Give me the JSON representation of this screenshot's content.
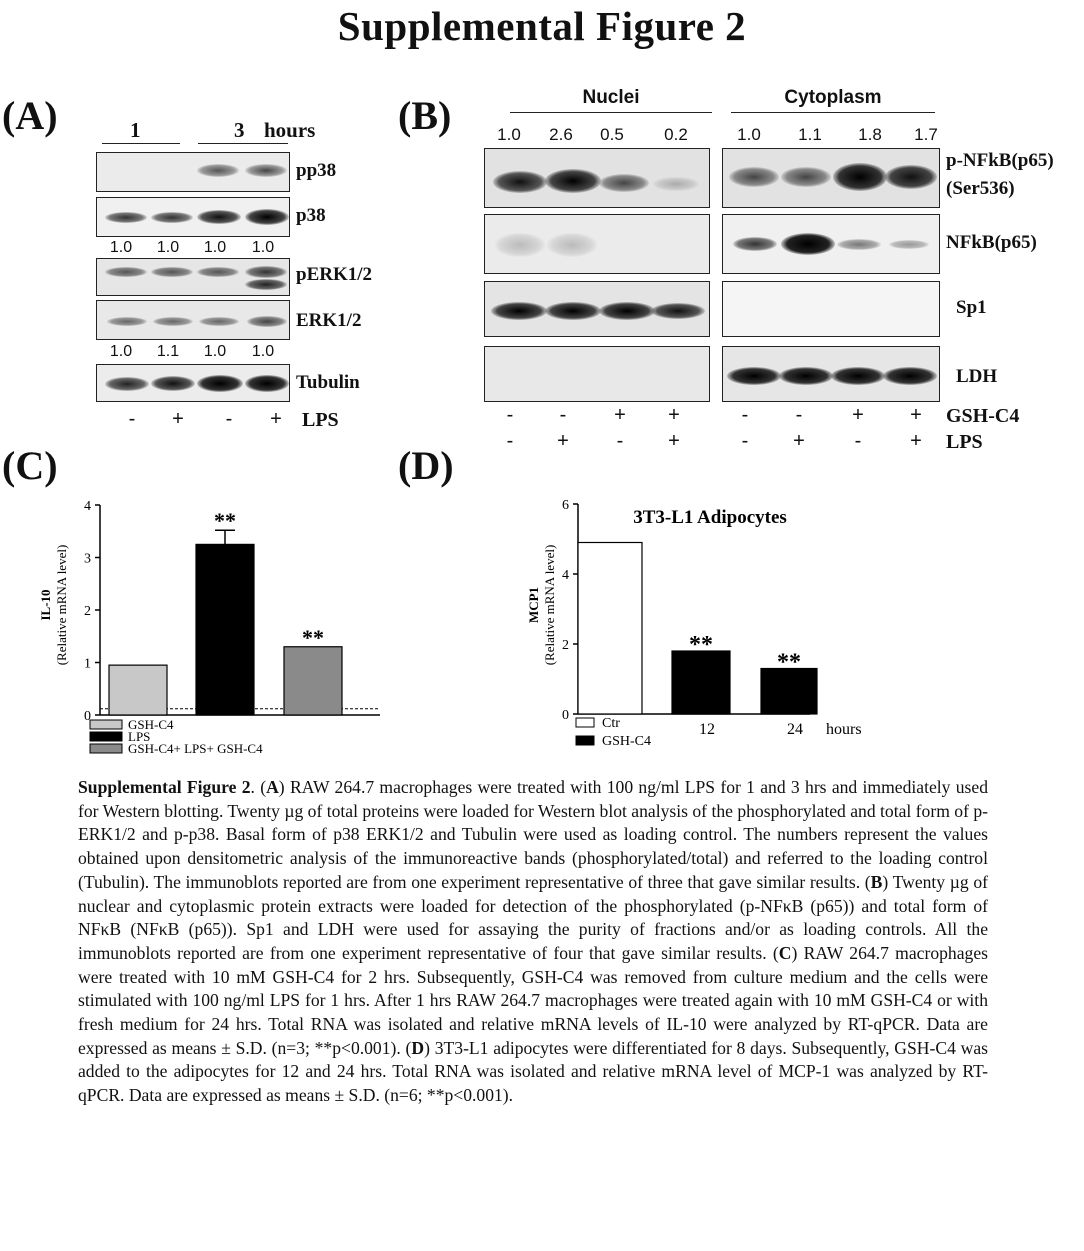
{
  "title": "Supplemental Figure 2",
  "panelA": {
    "letter": "(A)",
    "time_groups": [
      "1",
      "3"
    ],
    "time_unit": "hours",
    "blots": [
      "pp38",
      "p38",
      "pERK1/2",
      "ERK1/2",
      "Tubulin"
    ],
    "numbers_row1": [
      "1.0",
      "1.0",
      "1.0",
      "1.0"
    ],
    "numbers_row2": [
      "1.0",
      "1.1",
      "1.0",
      "1.0"
    ],
    "lps_signs": [
      "-",
      "+",
      "-",
      "+"
    ],
    "lps_label": "LPS"
  },
  "panelB": {
    "letter": "(B)",
    "nuclei_label": "Nuclei",
    "cytoplasm_label": "Cytoplasm",
    "nuclei_numbers": [
      "1.0",
      "2.6",
      "0.5",
      "0.2"
    ],
    "cyto_numbers": [
      "1.0",
      "1.1",
      "1.8",
      "1.7"
    ],
    "blot_label_1a": "p-NFkB(p65)",
    "blot_label_1b": "(Ser536)",
    "blot_label_2": "NFkB(p65)",
    "blot_label_3": "Sp1",
    "blot_label_4": "LDH",
    "gsh_signs": [
      "-",
      "-",
      "+",
      "+",
      "-",
      "-",
      "+",
      "+"
    ],
    "lps_signs": [
      "-",
      "+",
      "-",
      "+",
      "-",
      "+",
      "-",
      "+"
    ],
    "gsh_label": "GSH-C4",
    "lps_label": "LPS"
  },
  "panelC": {
    "letter": "(C)",
    "legend": [
      "GSH-C4",
      "LPS",
      "GSH-C4+ LPS+ GSH-C4"
    ],
    "colors": {
      "bar1": "#c8c8c8",
      "bar2": "#000000",
      "bar3": "#8a8a8a"
    }
  },
  "panelD": {
    "letter": "(D)",
    "subtitle": "3T3-L1 Adipocytes",
    "legend": [
      "Ctr",
      "GSH-C4"
    ],
    "colors": {
      "ctr": "#ffffff",
      "gsh": "#000000"
    }
  },
  "chart_data": [
    {
      "type": "bar",
      "panel": "C",
      "ylabel": "IL-10",
      "ylabel2": "(Relative mRNA level)",
      "categories": [
        "GSH-C4",
        "LPS",
        "GSH-C4+ LPS+ GSH-C4"
      ],
      "values": [
        0.95,
        3.25,
        1.3
      ],
      "errors": [
        0.0,
        0.27,
        0.0
      ],
      "significance": [
        "",
        "**",
        "**"
      ],
      "ylim": [
        0,
        4
      ],
      "yticks": [
        "0",
        "1",
        "2",
        "3",
        "4"
      ],
      "baseline_dashed": 0.12
    },
    {
      "type": "bar",
      "panel": "D",
      "title": "3T3-L1 Adipocytes",
      "ylabel": "MCP1",
      "ylabel2": "(Relative mRNA level)",
      "categories": [
        "",
        "12",
        "24"
      ],
      "x_unit": "hours",
      "values": [
        4.9,
        1.8,
        1.3
      ],
      "significance": [
        "",
        "**",
        "**"
      ],
      "ylim": [
        0,
        6
      ],
      "yticks": [
        "0",
        "2",
        "4",
        "6"
      ]
    }
  ],
  "caption": {
    "lead": "Supplemental Figure 2",
    "pA": "A",
    "tA": "RAW 264.7 macrophages were treated with 100 ng/ml LPS for 1 and 3 hrs and immediately used for Western blotting. Twenty µg of total proteins were loaded for Western blot analysis of the phosphorylated and total form of p-ERK1/2 and p-p38. Basal form of p38 ERK1/2 and Tubulin were used as loading control. The numbers represent the values obtained upon densitometric analysis of the immunoreactive bands (phosphorylated/total) and referred to the loading control (Tubulin). The immunoblots reported are from one experiment representative of three that gave similar results.",
    "pB": "B",
    "tB": "Twenty µg of nuclear and cytoplasmic protein extracts were loaded for detection of the phosphorylated (p-NFκB (p65)) and total form of NFκB (NFκB (p65)). Sp1 and LDH were used for assaying the purity of fractions and/or as loading controls. All the immunoblots reported are from one experiment representative of four that gave similar results.",
    "pC": "C",
    "tC": "RAW 264.7 macrophages were treated with 10 mM GSH-C4 for 2 hrs. Subsequently, GSH-C4 was removed from culture medium and the cells were stimulated with 100 ng/ml LPS for 1 hrs. After 1 hrs RAW 264.7 macrophages were treated again with 10 mM GSH-C4 or with fresh medium for 24 hrs. Total RNA was isolated and relative mRNA levels of IL-10 were analyzed by RT-qPCR. Data are expressed as means ± S.D. (n=3; **p<0.001).",
    "pD": "D",
    "tD": "3T3-L1 adipocytes were differentiated for 8 days. Subsequently, GSH-C4 was added to the adipocytes for 12 and 24 hrs. Total RNA was isolated and relative mRNA level of MCP-1 was analyzed by RT-qPCR. Data are expressed as means ± S.D. (n=6; **p<0.001)."
  }
}
